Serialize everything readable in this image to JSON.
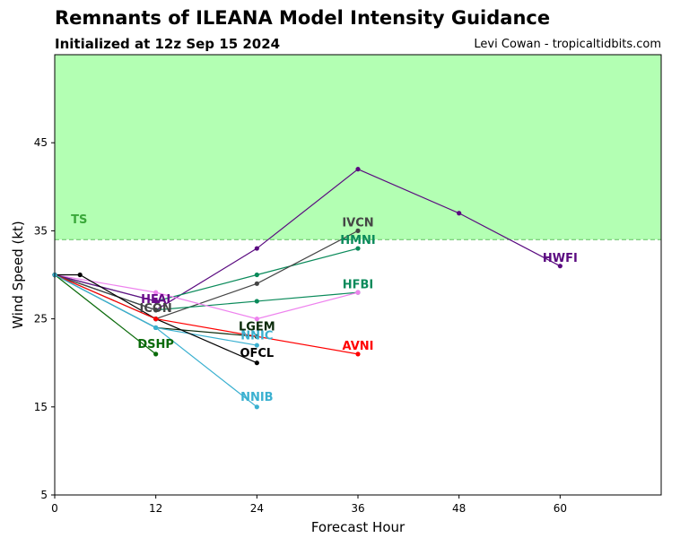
{
  "header": {
    "title": "Remnants of ILEANA Model Intensity Guidance",
    "subtitle": "Initialized at 12z Sep 15 2024",
    "credit": "Levi Cowan - tropicaltidbits.com"
  },
  "chart_data": {
    "type": "line",
    "title": "Remnants of ILEANA Model Intensity Guidance",
    "subtitle": "Initialized at 12z Sep 15 2024",
    "xlabel": "Forecast Hour",
    "ylabel": "Wind Speed (kt)",
    "xlim": [
      0,
      72
    ],
    "ylim": [
      5,
      55
    ],
    "xticks": [
      0,
      12,
      24,
      36,
      48,
      60
    ],
    "yticks": [
      5,
      15,
      25,
      35,
      45
    ],
    "grid": false,
    "threshold": {
      "label": "TS",
      "value": 34,
      "fill_color": "#b3ffb3",
      "line_color": "#5fbf5f",
      "label_color": "#3aa83a"
    },
    "series": [
      {
        "name": "HWFI",
        "color": "#5a0a80",
        "x": [
          0,
          12,
          24,
          36,
          48,
          60
        ],
        "y": [
          30,
          26,
          33,
          42,
          37,
          31
        ]
      },
      {
        "name": "HMNI",
        "color": "#0a8a5a",
        "x": [
          0,
          12,
          24,
          36
        ],
        "y": [
          30,
          27,
          30,
          33
        ]
      },
      {
        "name": "IVCN",
        "color": "#454545",
        "x": [
          0,
          12,
          24,
          36
        ],
        "y": [
          30,
          25,
          29,
          35
        ]
      },
      {
        "name": "HFBI",
        "color": "#0a8a5a",
        "x": [
          0,
          12,
          24,
          36
        ],
        "y": [
          30,
          26,
          27,
          28
        ]
      },
      {
        "name": "",
        "color": "#ee82ee",
        "x": [
          0,
          12,
          24,
          36
        ],
        "y": [
          30,
          28,
          25,
          28
        ]
      },
      {
        "name": "HFAI",
        "color": "#6a0a8a",
        "x": [
          0,
          12
        ],
        "y": [
          30,
          27
        ]
      },
      {
        "name": "ICON",
        "color": "#454545",
        "x": [
          0,
          12
        ],
        "y": [
          30,
          26
        ]
      },
      {
        "name": "LGEM",
        "color": "#0a2a0a",
        "x": [
          0,
          12,
          24
        ],
        "y": [
          30,
          24,
          23
        ]
      },
      {
        "name": "NNIC",
        "color": "#3ab0d0",
        "x": [
          0,
          12,
          24
        ],
        "y": [
          30,
          24,
          22
        ]
      },
      {
        "name": "OFCL",
        "color": "#000000",
        "x": [
          0,
          3,
          12,
          24
        ],
        "y": [
          30,
          30,
          25,
          20
        ]
      },
      {
        "name": "AVNI",
        "color": "#ff0000",
        "x": [
          0,
          12,
          36
        ],
        "y": [
          30,
          25,
          21
        ]
      },
      {
        "name": "DSHP",
        "color": "#0a6a0a",
        "x": [
          0,
          12
        ],
        "y": [
          30,
          21
        ]
      },
      {
        "name": "NNIB",
        "color": "#3ab0d0",
        "x": [
          0,
          12,
          24
        ],
        "y": [
          30,
          24,
          15
        ]
      }
    ],
    "labels": [
      {
        "text": "HWFI",
        "x": 60,
        "y": 32,
        "color": "#5a0a80"
      },
      {
        "text": "IVCN",
        "x": 36,
        "y": 36,
        "color": "#454545"
      },
      {
        "text": "HMNI",
        "x": 36,
        "y": 34,
        "color": "#0a8a5a"
      },
      {
        "text": "HFBI",
        "x": 36,
        "y": 29,
        "color": "#0a8a5a"
      },
      {
        "text": "HFAI",
        "x": 12,
        "y": 27.3,
        "color": "#6a0a8a"
      },
      {
        "text": "ICON",
        "x": 12,
        "y": 26.3,
        "color": "#454545"
      },
      {
        "text": "LGEM",
        "x": 24,
        "y": 24.2,
        "color": "#0a2a0a"
      },
      {
        "text": "NNIC",
        "x": 24,
        "y": 23.2,
        "color": "#3ab0d0"
      },
      {
        "text": "OFCL",
        "x": 24,
        "y": 21.2,
        "color": "#000000"
      },
      {
        "text": "AVNI",
        "x": 36,
        "y": 22,
        "color": "#ff0000"
      },
      {
        "text": "DSHP",
        "x": 12,
        "y": 22.2,
        "color": "#0a6a0a"
      },
      {
        "text": "NNIB",
        "x": 24,
        "y": 16.2,
        "color": "#3ab0d0"
      }
    ]
  }
}
